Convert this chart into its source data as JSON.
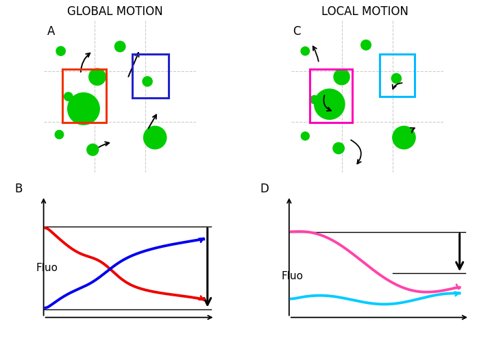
{
  "title_left": "GLOBAL MOTION",
  "title_right": "LOCAL MOTION",
  "label_A": "A",
  "label_B": "B",
  "label_C": "C",
  "label_D": "D",
  "fluo_label": "Fluo",
  "green_color": "#00CC00",
  "red_color": "#EE0000",
  "blue_color": "#0000EE",
  "magenta_color": "#FF44AA",
  "cyan_color": "#00CCFF",
  "box_red": "#EE3300",
  "box_blue": "#2222CC",
  "box_magenta": "#FF00BB",
  "box_cyan": "#00BBFF",
  "grid_color": "#CCCCCC",
  "bg_color": "#FFFFFF"
}
